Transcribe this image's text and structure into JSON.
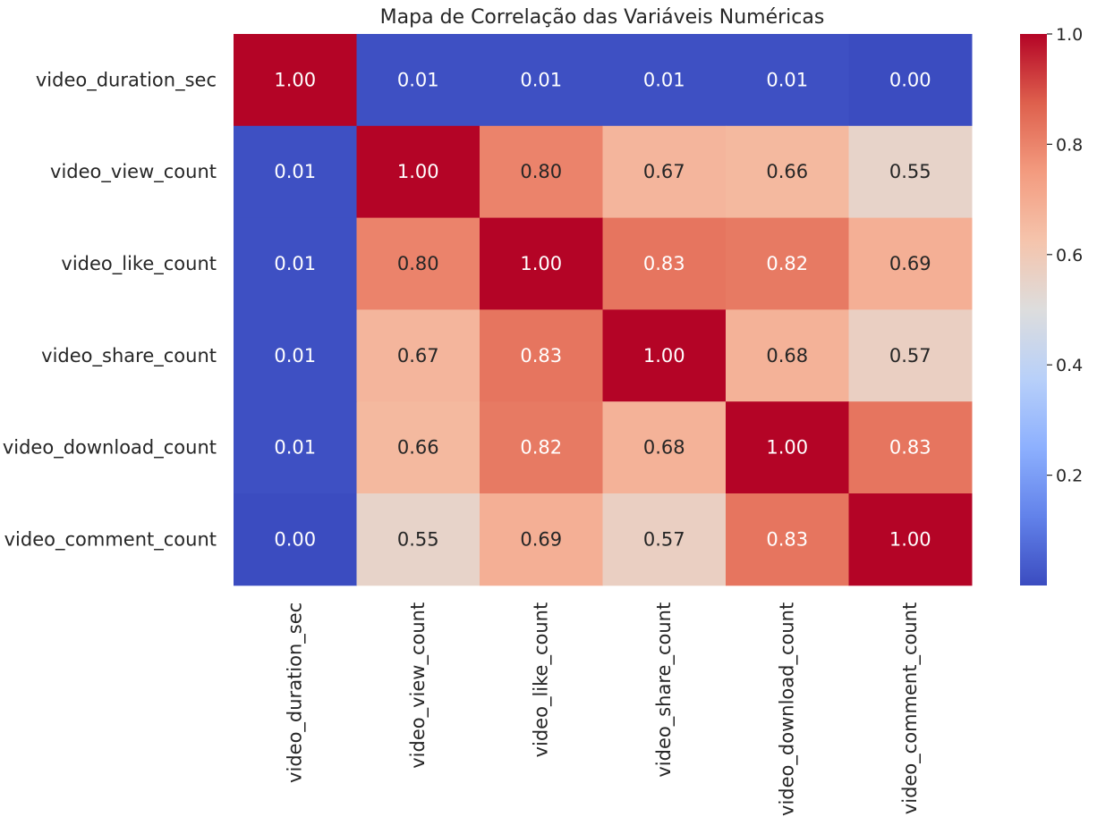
{
  "chart_data": {
    "type": "heatmap",
    "title": "Mapa de Correlação das Variáveis Numéricas",
    "rows": [
      "video_duration_sec",
      "video_view_count",
      "video_like_count",
      "video_share_count",
      "video_download_count",
      "video_comment_count"
    ],
    "columns": [
      "video_duration_sec",
      "video_view_count",
      "video_like_count",
      "video_share_count",
      "video_download_count",
      "video_comment_count"
    ],
    "values": [
      [
        1.0,
        0.01,
        0.01,
        0.01,
        0.01,
        0.0
      ],
      [
        0.01,
        1.0,
        0.8,
        0.67,
        0.66,
        0.55
      ],
      [
        0.01,
        0.8,
        1.0,
        0.83,
        0.82,
        0.69
      ],
      [
        0.01,
        0.67,
        0.83,
        1.0,
        0.68,
        0.57
      ],
      [
        0.01,
        0.66,
        0.82,
        0.68,
        1.0,
        0.83
      ],
      [
        0.0,
        0.55,
        0.69,
        0.57,
        0.83,
        1.0
      ]
    ],
    "value_format": "2 decimals",
    "colormap": "coolwarm",
    "colormap_stops": [
      "#3b4cc0",
      "#6282ea",
      "#8db0fe",
      "#b8d0f9",
      "#dddddd",
      "#f5c4ac",
      "#f39b7f",
      "#de604d",
      "#b40426"
    ],
    "color_range": [
      0,
      1
    ],
    "colorbar": {
      "ticks": [
        0.2,
        0.4,
        0.6,
        0.8,
        1.0
      ],
      "tick_labels": [
        "0.2",
        "0.4",
        "0.6",
        "0.8",
        "1.0"
      ],
      "position": "right"
    },
    "annotation_colors": {
      "dark": "#262626",
      "light": "#ffffff"
    }
  }
}
